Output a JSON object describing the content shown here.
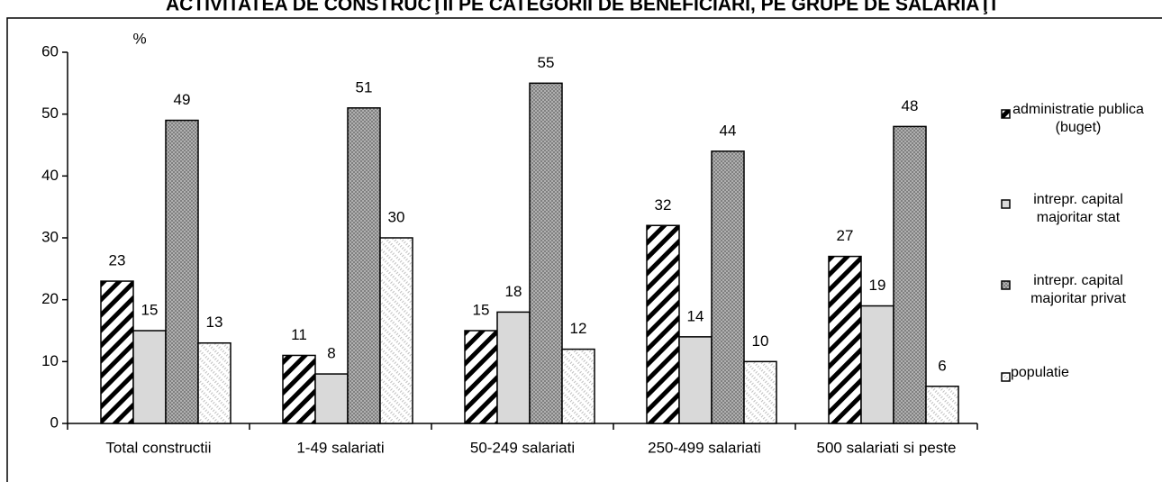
{
  "chart_data": {
    "type": "bar",
    "title": "ACTIVITATEA DE CONSTRUCŢII PE CATEGORII DE BENEFICIARI, PE GRUPE DE SALARIAŢI",
    "y_label": "%",
    "categories": [
      "Total constructii",
      "1-49 salariati",
      "50-249 salariati",
      "250-499 salariati",
      "500 salariati si peste"
    ],
    "series": [
      {
        "name": "administratie publica (buget)",
        "color": "#000000",
        "values": [
          23,
          11,
          15,
          32,
          27
        ]
      },
      {
        "name": "intrepr. capital majoritar stat",
        "color": "#d9d9d9",
        "values": [
          15,
          8,
          18,
          14,
          19
        ]
      },
      {
        "name": "intrepr. capital majoritar privat",
        "color": "#808080",
        "values": [
          49,
          51,
          55,
          44,
          48
        ]
      },
      {
        "name": "populatie",
        "color": "#bfbfbf",
        "values": [
          13,
          30,
          12,
          10,
          6
        ]
      }
    ],
    "ylim": [
      0,
      60
    ],
    "yticks": [
      0,
      10,
      20,
      30,
      40,
      50,
      60
    ],
    "legend": "right"
  }
}
